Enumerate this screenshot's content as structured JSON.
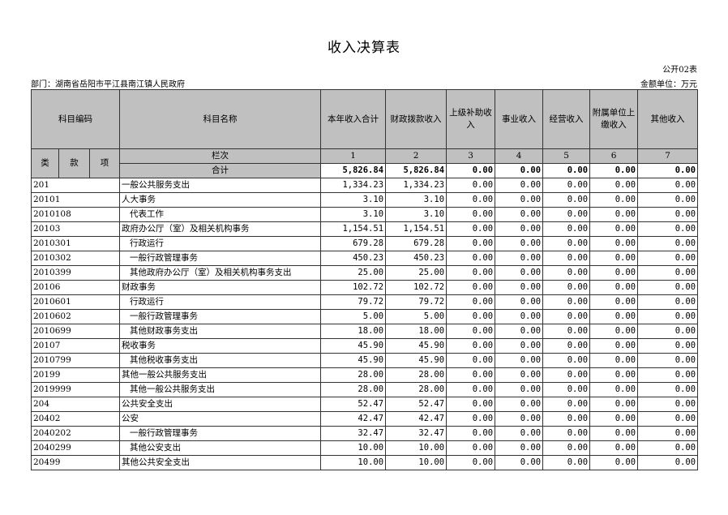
{
  "title": "收入决算表",
  "form_no": "公开02表",
  "department": "部门：湖南省岳阳市平江县南江镇人民政府",
  "unit": "金额单位：万元",
  "headers": {
    "code": "科目编码",
    "name": "科目名称",
    "cols": [
      "本年收入合计",
      "财政拨款收入",
      "上级补助收入",
      "事业收入",
      "经营收入",
      "附属单位上缴收入",
      "其他收入"
    ],
    "lei": "类",
    "kuan": "款",
    "xiang": "项",
    "lanci": "栏次",
    "col_nums": [
      "1",
      "2",
      "3",
      "4",
      "5",
      "6",
      "7"
    ]
  },
  "total": {
    "label": "合计",
    "values": [
      "5,826.84",
      "5,826.84",
      "0.00",
      "0.00",
      "0.00",
      "0.00",
      "0.00"
    ]
  },
  "rows": [
    {
      "code": "201",
      "name": "一般公共服务支出",
      "indent": false,
      "values": [
        "1,334.23",
        "1,334.23",
        "0.00",
        "0.00",
        "0.00",
        "0.00",
        "0.00"
      ]
    },
    {
      "code": "20101",
      "name": "人大事务",
      "indent": false,
      "values": [
        "3.10",
        "3.10",
        "0.00",
        "0.00",
        "0.00",
        "0.00",
        "0.00"
      ]
    },
    {
      "code": "2010108",
      "name": "代表工作",
      "indent": true,
      "values": [
        "3.10",
        "3.10",
        "0.00",
        "0.00",
        "0.00",
        "0.00",
        "0.00"
      ]
    },
    {
      "code": "20103",
      "name": "政府办公厅（室）及相关机构事务",
      "indent": false,
      "values": [
        "1,154.51",
        "1,154.51",
        "0.00",
        "0.00",
        "0.00",
        "0.00",
        "0.00"
      ]
    },
    {
      "code": "2010301",
      "name": "行政运行",
      "indent": true,
      "values": [
        "679.28",
        "679.28",
        "0.00",
        "0.00",
        "0.00",
        "0.00",
        "0.00"
      ]
    },
    {
      "code": "2010302",
      "name": "一般行政管理事务",
      "indent": true,
      "values": [
        "450.23",
        "450.23",
        "0.00",
        "0.00",
        "0.00",
        "0.00",
        "0.00"
      ]
    },
    {
      "code": "2010399",
      "name": "其他政府办公厅（室）及相关机构事务支出",
      "indent": true,
      "values": [
        "25.00",
        "25.00",
        "0.00",
        "0.00",
        "0.00",
        "0.00",
        "0.00"
      ]
    },
    {
      "code": "20106",
      "name": "财政事务",
      "indent": false,
      "values": [
        "102.72",
        "102.72",
        "0.00",
        "0.00",
        "0.00",
        "0.00",
        "0.00"
      ]
    },
    {
      "code": "2010601",
      "name": "行政运行",
      "indent": true,
      "values": [
        "79.72",
        "79.72",
        "0.00",
        "0.00",
        "0.00",
        "0.00",
        "0.00"
      ]
    },
    {
      "code": "2010602",
      "name": "一般行政管理事务",
      "indent": true,
      "values": [
        "5.00",
        "5.00",
        "0.00",
        "0.00",
        "0.00",
        "0.00",
        "0.00"
      ]
    },
    {
      "code": "2010699",
      "name": "其他财政事务支出",
      "indent": true,
      "values": [
        "18.00",
        "18.00",
        "0.00",
        "0.00",
        "0.00",
        "0.00",
        "0.00"
      ]
    },
    {
      "code": "20107",
      "name": "税收事务",
      "indent": false,
      "values": [
        "45.90",
        "45.90",
        "0.00",
        "0.00",
        "0.00",
        "0.00",
        "0.00"
      ]
    },
    {
      "code": "2010799",
      "name": "其他税收事务支出",
      "indent": true,
      "values": [
        "45.90",
        "45.90",
        "0.00",
        "0.00",
        "0.00",
        "0.00",
        "0.00"
      ]
    },
    {
      "code": "20199",
      "name": "其他一般公共服务支出",
      "indent": false,
      "values": [
        "28.00",
        "28.00",
        "0.00",
        "0.00",
        "0.00",
        "0.00",
        "0.00"
      ]
    },
    {
      "code": "2019999",
      "name": "其他一般公共服务支出",
      "indent": true,
      "values": [
        "28.00",
        "28.00",
        "0.00",
        "0.00",
        "0.00",
        "0.00",
        "0.00"
      ]
    },
    {
      "code": "204",
      "name": "公共安全支出",
      "indent": false,
      "values": [
        "52.47",
        "52.47",
        "0.00",
        "0.00",
        "0.00",
        "0.00",
        "0.00"
      ]
    },
    {
      "code": "20402",
      "name": "公安",
      "indent": false,
      "values": [
        "42.47",
        "42.47",
        "0.00",
        "0.00",
        "0.00",
        "0.00",
        "0.00"
      ]
    },
    {
      "code": "2040202",
      "name": "一般行政管理事务",
      "indent": true,
      "values": [
        "32.47",
        "32.47",
        "0.00",
        "0.00",
        "0.00",
        "0.00",
        "0.00"
      ]
    },
    {
      "code": "2040299",
      "name": "其他公安支出",
      "indent": true,
      "values": [
        "10.00",
        "10.00",
        "0.00",
        "0.00",
        "0.00",
        "0.00",
        "0.00"
      ]
    },
    {
      "code": "20499",
      "name": "其他公共安全支出",
      "indent": false,
      "values": [
        "10.00",
        "10.00",
        "0.00",
        "0.00",
        "0.00",
        "0.00",
        "0.00"
      ]
    }
  ]
}
